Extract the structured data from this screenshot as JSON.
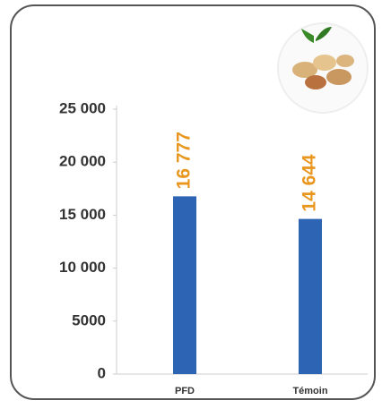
{
  "chart_data": {
    "type": "bar",
    "categories": [
      "PFD",
      "Témoin"
    ],
    "values": [
      16777,
      14644
    ],
    "value_labels": [
      "16 777",
      "14 644"
    ],
    "color": "#2e64b4",
    "label_color": "#e8961e",
    "ylim": [
      0,
      25000
    ],
    "yticks": [
      0,
      5000,
      {
        "value": 10000,
        "label": "10 000"
      },
      {
        "value": 15000,
        "label": "15 000"
      },
      {
        "value": 20000,
        "label": "20 000"
      },
      {
        "value": 25000,
        "label": "25 000"
      }
    ],
    "grid": false
  }
}
